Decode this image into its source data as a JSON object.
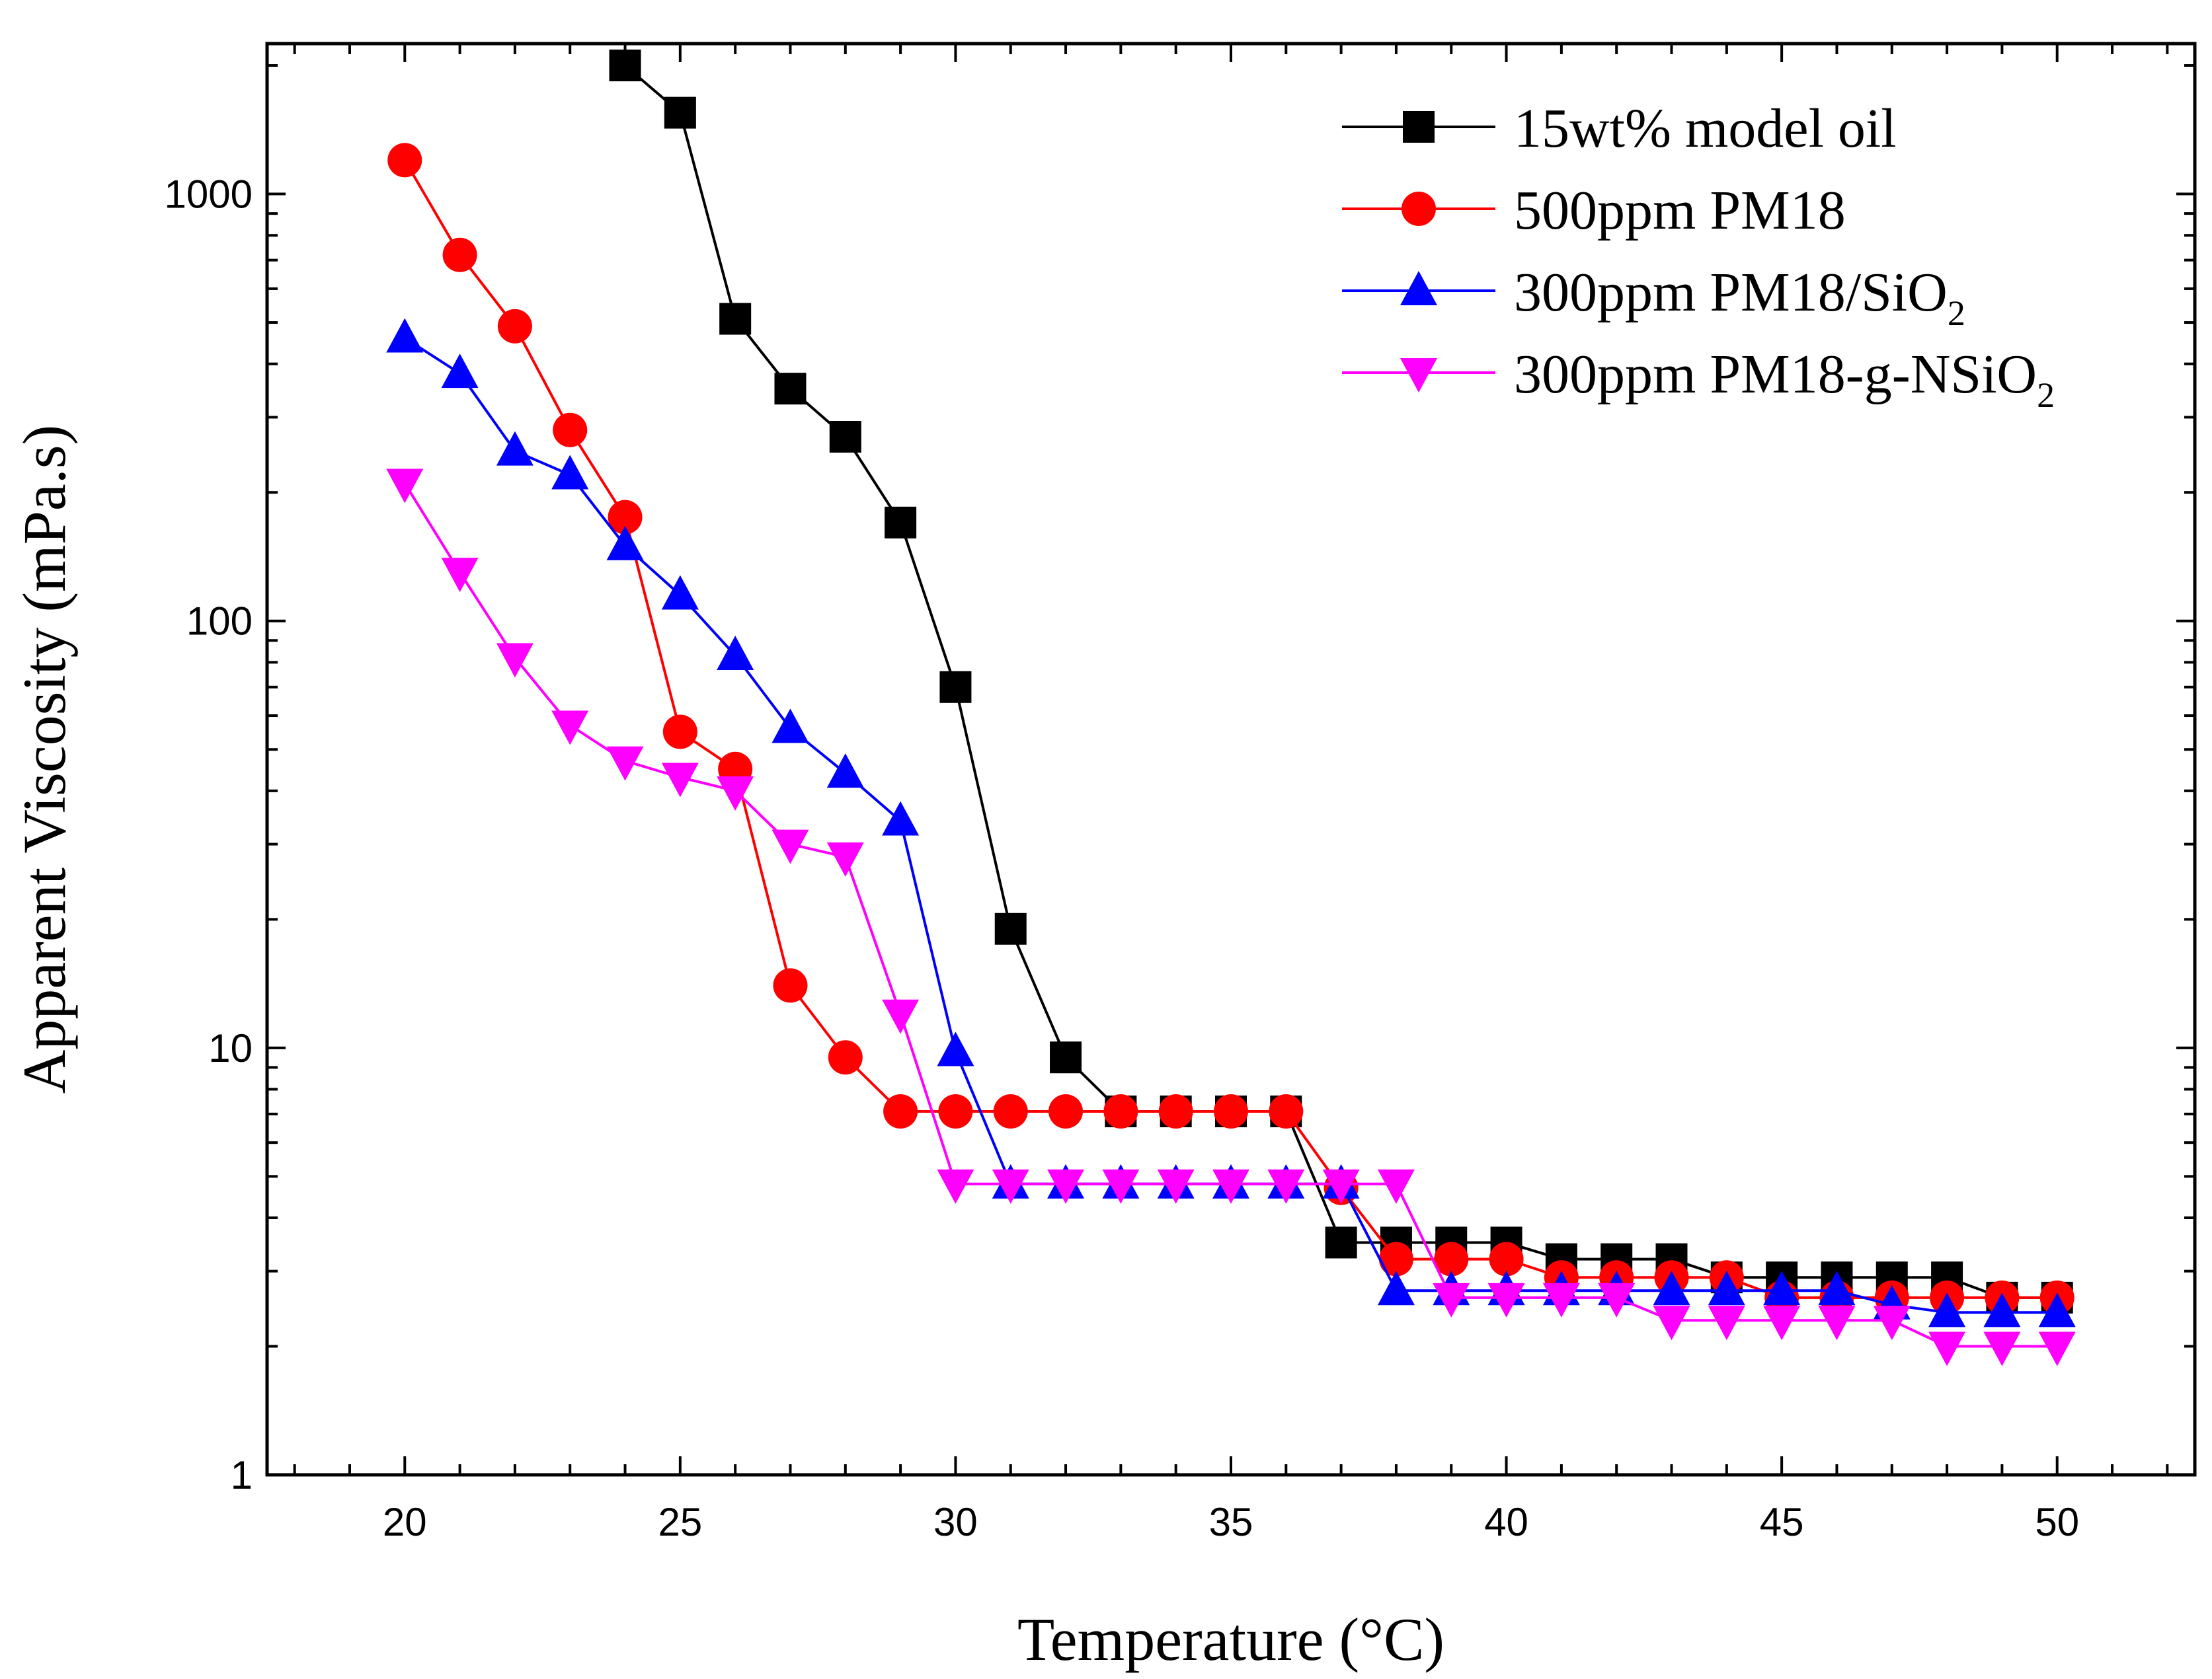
{
  "chart_data": {
    "type": "line",
    "xlabel": "Temperature (°C)",
    "ylabel": "Apparent Viscosity (mPa.s)",
    "yscale": "log",
    "xlim": [
      17.5,
      52.5
    ],
    "ylim": [
      1,
      2250
    ],
    "xticks": [
      20,
      25,
      30,
      35,
      40,
      45,
      50
    ],
    "xtick_labels": [
      "20",
      "25",
      "30",
      "35",
      "40",
      "45",
      "50"
    ],
    "yticks": [
      1,
      10,
      100,
      1000
    ],
    "ytick_labels": [
      "1",
      "10",
      "100",
      "1000"
    ],
    "legend_position": "top-right",
    "series": [
      {
        "name_main": "15wt% model oil",
        "name_sub": "",
        "color": "#000000",
        "marker": "square",
        "x": [
          24,
          25,
          26,
          27,
          28,
          29,
          30,
          31,
          32,
          33,
          34,
          35,
          36,
          37,
          38,
          39,
          40,
          41,
          42,
          43,
          44,
          45,
          46,
          47,
          48,
          49,
          50
        ],
        "values": [
          2000,
          1550,
          510,
          350,
          270,
          170,
          70,
          19,
          9.5,
          7.1,
          7.1,
          7.1,
          7.1,
          3.5,
          3.5,
          3.5,
          3.5,
          3.2,
          3.2,
          3.2,
          2.9,
          2.9,
          2.9,
          2.9,
          2.9,
          2.6,
          2.6
        ]
      },
      {
        "name_main": "500ppm PM18",
        "name_sub": "",
        "color": "#ff0000",
        "marker": "circle",
        "x": [
          20,
          21,
          22,
          23,
          24,
          25,
          26,
          27,
          28,
          29,
          30,
          31,
          32,
          33,
          34,
          35,
          36,
          37,
          38,
          39,
          40,
          41,
          42,
          43,
          44,
          45,
          46,
          47,
          48,
          49,
          50
        ],
        "values": [
          1200,
          720,
          490,
          280,
          175,
          55,
          45,
          14,
          9.5,
          7.1,
          7.1,
          7.1,
          7.1,
          7.1,
          7.1,
          7.1,
          7.1,
          4.7,
          3.2,
          3.2,
          3.2,
          2.9,
          2.9,
          2.9,
          2.9,
          2.6,
          2.6,
          2.6,
          2.6,
          2.6,
          2.6
        ]
      },
      {
        "name_main": "300ppm PM18/SiO",
        "name_sub": "2",
        "color": "#0000ff",
        "marker": "triangle-up",
        "x": [
          20,
          21,
          22,
          23,
          24,
          25,
          26,
          27,
          28,
          29,
          30,
          31,
          32,
          33,
          34,
          35,
          36,
          37,
          38,
          39,
          40,
          41,
          42,
          43,
          44,
          45,
          46,
          47,
          48,
          49,
          50
        ],
        "values": [
          460,
          380,
          250,
          220,
          150,
          115,
          83,
          56,
          44,
          34,
          9.8,
          4.8,
          4.8,
          4.8,
          4.8,
          4.8,
          4.8,
          4.8,
          2.7,
          2.7,
          2.7,
          2.7,
          2.7,
          2.7,
          2.7,
          2.7,
          2.7,
          2.5,
          2.4,
          2.4,
          2.4
        ]
      },
      {
        "name_main": "300ppm PM18-g-NSiO",
        "name_sub": "2",
        "color": "#ff00ff",
        "marker": "triangle-down",
        "x": [
          20,
          21,
          22,
          23,
          24,
          25,
          26,
          27,
          28,
          29,
          30,
          31,
          32,
          33,
          34,
          35,
          36,
          37,
          38,
          39,
          40,
          41,
          42,
          43,
          44,
          45,
          46,
          47,
          48,
          49,
          50
        ],
        "values": [
          210,
          130,
          82,
          57,
          47,
          43,
          40,
          30,
          28,
          12,
          4.8,
          4.8,
          4.8,
          4.8,
          4.8,
          4.8,
          4.8,
          4.8,
          4.8,
          2.6,
          2.6,
          2.6,
          2.6,
          2.3,
          2.3,
          2.3,
          2.3,
          2.3,
          2.0,
          2.0,
          2.0
        ]
      }
    ]
  }
}
